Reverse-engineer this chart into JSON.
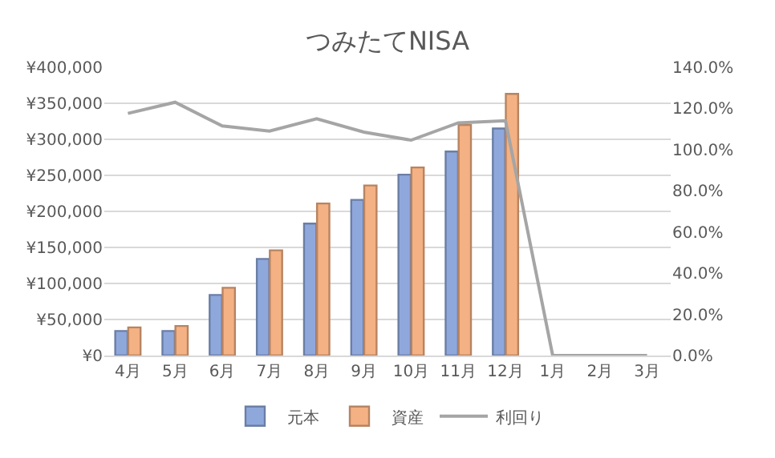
{
  "chart_data": {
    "type": "bar",
    "title": "つみたてNISA",
    "categories": [
      "4月",
      "5月",
      "6月",
      "7月",
      "8月",
      "9月",
      "10月",
      "11月",
      "12月",
      "1月",
      "2月",
      "3月"
    ],
    "series": [
      {
        "name": "元本",
        "color": "#8fa8dc",
        "values": [
          34000,
          34000,
          84000,
          134000,
          183000,
          216000,
          251000,
          283000,
          315000,
          null,
          null,
          null
        ]
      },
      {
        "name": "資産",
        "color": "#f4b183",
        "values": [
          39000,
          41000,
          94000,
          146000,
          211000,
          236000,
          261000,
          320000,
          363000,
          null,
          null,
          null
        ]
      },
      {
        "name": "利回り",
        "type": "line",
        "axis": "y2",
        "color": "#a5a5a5",
        "values": [
          117.6,
          123,
          111.5,
          109,
          115,
          108.5,
          104.6,
          113,
          114,
          0,
          0,
          0
        ]
      }
    ],
    "ylim": [
      0,
      400000
    ],
    "yticks": [
      {
        "value": 0,
        "label": "¥0"
      },
      {
        "value": 50000,
        "label": "¥50,000"
      },
      {
        "value": 100000,
        "label": "¥100,000"
      },
      {
        "value": 150000,
        "label": "¥150,000"
      },
      {
        "value": 200000,
        "label": "¥200,000"
      },
      {
        "value": 250000,
        "label": "¥250,000"
      },
      {
        "value": 300000,
        "label": "¥300,000"
      },
      {
        "value": 350000,
        "label": "¥350,000"
      },
      {
        "value": 400000,
        "label": "¥400,000"
      }
    ],
    "y2lim": [
      0,
      140
    ],
    "y2ticks": [
      {
        "value": 0,
        "label": "0.0%"
      },
      {
        "value": 20,
        "label": "20.0%"
      },
      {
        "value": 40,
        "label": "40.0%"
      },
      {
        "value": 60,
        "label": "60.0%"
      },
      {
        "value": 80,
        "label": "80.0%"
      },
      {
        "value": 100,
        "label": "100.0%"
      },
      {
        "value": 120,
        "label": "120.0%"
      },
      {
        "value": 140,
        "label": "140.0%"
      }
    ],
    "grid": "y",
    "legend": "bottom",
    "marker": "none",
    "line_style": "solid"
  }
}
